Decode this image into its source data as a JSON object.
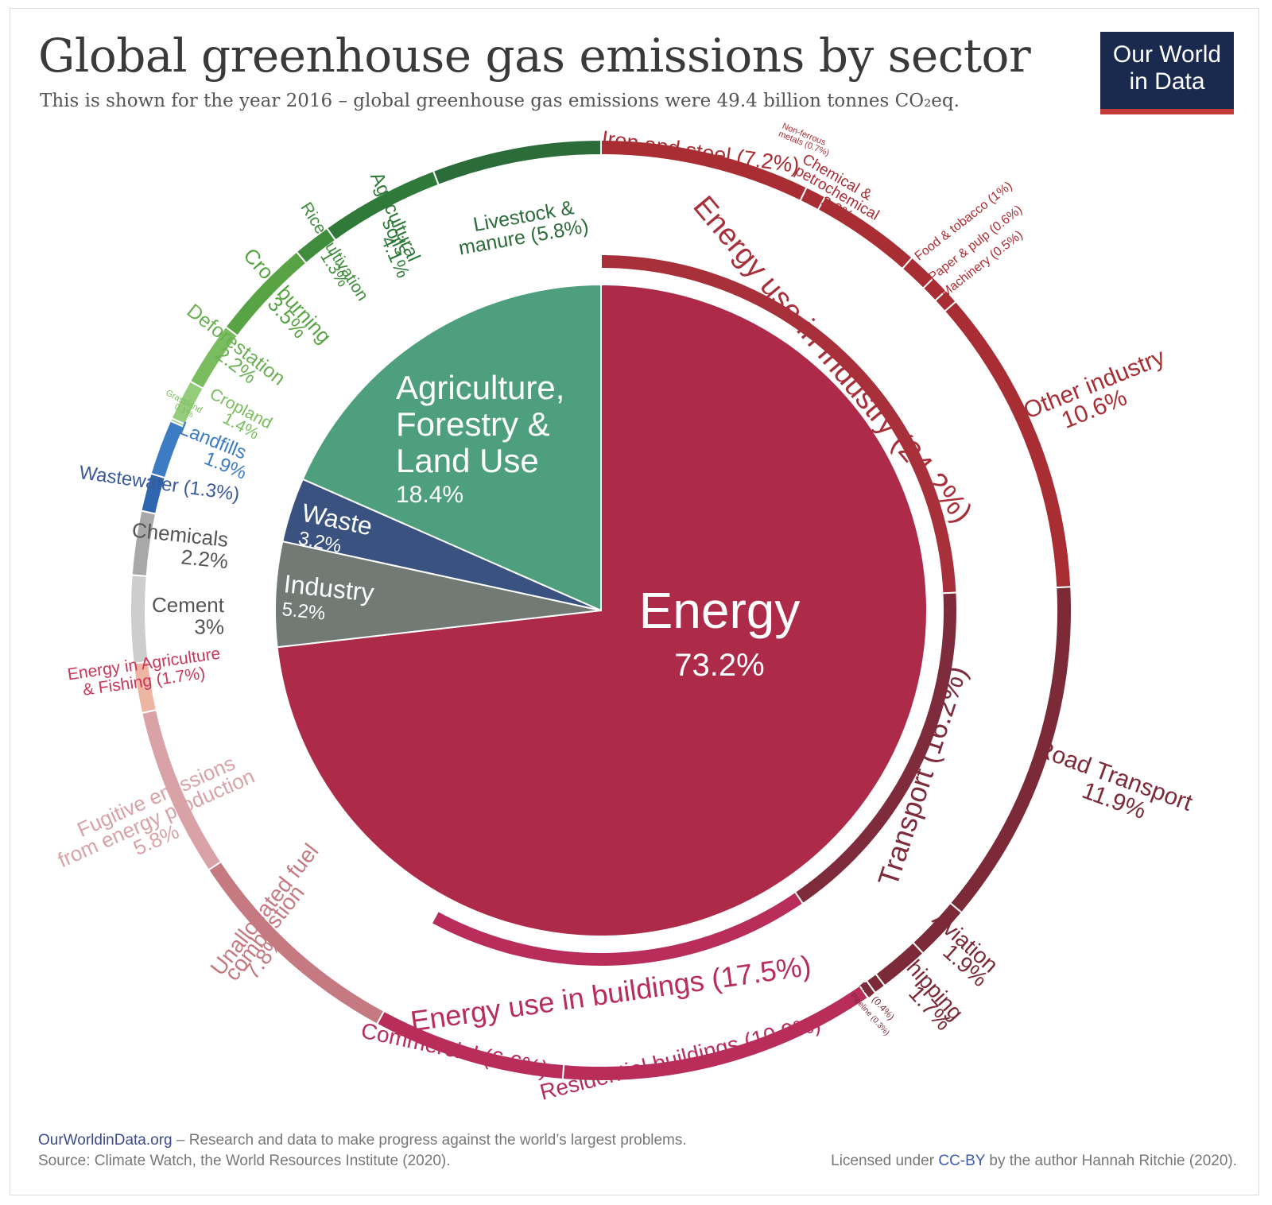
{
  "header": {
    "title": "Global greenhouse gas emissions by sector",
    "subtitle": "This is shown for the year 2016 – global greenhouse gas emissions were 49.4 billion tonnes CO₂eq.",
    "logo_line1": "Our World",
    "logo_line2": "in Data",
    "logo_bg": "#1a2a4f",
    "logo_accent": "#c43a3a"
  },
  "chart_data": {
    "type": "pie",
    "title": "Global greenhouse gas emissions by sector",
    "unit": "% of global GHG emissions (2016)",
    "main": [
      {
        "id": "energy",
        "label": "Energy",
        "value": 73.2,
        "value_label": "73.2%",
        "color": "#ad2b48"
      },
      {
        "id": "industry",
        "label": "Industry",
        "value": 5.2,
        "value_label": "5.2%",
        "color": "#717a74"
      },
      {
        "id": "waste",
        "label": "Waste",
        "value": 3.2,
        "value_label": "3.2%",
        "color": "#3a5280"
      },
      {
        "id": "afolu",
        "label": "Agriculture,\nForestry &\nLand Use",
        "value": 18.4,
        "value_label": "18.4%",
        "color": "#4e9f7d"
      }
    ],
    "energy_groups": [
      {
        "label": "Energy use in Industry (24.2%)",
        "value": 24.2,
        "color": "#a8303a"
      },
      {
        "label": "Transport (16.2%)",
        "value": 16.2,
        "color": "#7e2c3c"
      },
      {
        "label": "Energy use in buildings (17.5%)",
        "value": 17.5,
        "color": "#b82d5a"
      }
    ],
    "outer": [
      {
        "label": "Iron and steel (7.2%)",
        "value": 7.2,
        "color": "#a82e34"
      },
      {
        "label": "Non-ferrous metals (0.7%)",
        "value": 0.7,
        "color": "#a82e34"
      },
      {
        "label": "Chemical & petrochemical 3.6%",
        "value": 3.6,
        "color": "#a82e34"
      },
      {
        "label": "Food & tobacco (1%)",
        "value": 1.0,
        "color": "#a82e34"
      },
      {
        "label": "Paper & pulp (0.6%)",
        "value": 0.6,
        "color": "#a82e34"
      },
      {
        "label": "Machinery (0.5%)",
        "value": 0.5,
        "color": "#a82e34"
      },
      {
        "label": "Other industry 10.6%",
        "value": 10.6,
        "color": "#a82e34"
      },
      {
        "label": "Road Transport 11.9%",
        "value": 11.9,
        "color": "#7c2a38"
      },
      {
        "label": "Aviation 1.9%",
        "value": 1.9,
        "color": "#7c2a38"
      },
      {
        "label": "Shipping 1.7%",
        "value": 1.7,
        "color": "#7c2a38"
      },
      {
        "label": "Rail (0.4%)",
        "value": 0.4,
        "color": "#7c2a38"
      },
      {
        "label": "Pipeline (0.3%)",
        "value": 0.3,
        "color": "#7c2a38"
      },
      {
        "label": "Residential buildings (10.9%)",
        "value": 10.9,
        "color": "#b82d5a"
      },
      {
        "label": "Commercial (6.6%)",
        "value": 6.6,
        "color": "#b82d5a"
      },
      {
        "label": "Unallocated fuel combustion 7.8%",
        "value": 7.8,
        "color": "#c47a80"
      },
      {
        "label": "Fugitive emissions from energy production 5.8%",
        "value": 5.8,
        "color": "#d8a2a6"
      },
      {
        "label": "Energy in Agriculture & Fishing (1.7%)",
        "value": 1.7,
        "color": "#eeb5a3"
      },
      {
        "label": "Cement 3%",
        "value": 3.0,
        "color": "#cdcdcd"
      },
      {
        "label": "Chemicals 2.2%",
        "value": 2.2,
        "color": "#a8a8a8"
      },
      {
        "label": "Wastewater (1.3%)",
        "value": 1.3,
        "color": "#2e66b0"
      },
      {
        "label": "Landfills 1.9%",
        "value": 1.9,
        "color": "#3c7cc4"
      },
      {
        "label": "Grassland 0.1%",
        "value": 0.1,
        "color": "#a2d28a"
      },
      {
        "label": "Cropland 1.4%",
        "value": 1.4,
        "color": "#96cd7c"
      },
      {
        "label": "Deforestation 2.2%",
        "value": 2.2,
        "color": "#7abd5e"
      },
      {
        "label": "Crop burning 3.5%",
        "value": 3.5,
        "color": "#58a444"
      },
      {
        "label": "Rice cultivation 1.3%",
        "value": 1.3,
        "color": "#3f8c3c"
      },
      {
        "label": "Agricultural soils 4.1%",
        "value": 4.1,
        "color": "#2f7a38"
      },
      {
        "label": "Livestock & manure (5.8%)",
        "value": 5.8,
        "color": "#2c6b3a"
      }
    ]
  },
  "footer": {
    "site": "OurWorldinData.org",
    "tagline": " – Research and data to make progress against the world’s largest problems.",
    "source": "Source: Climate Watch, the World Resources Institute (2020).",
    "license_prefix": "Licensed under ",
    "license_link": "CC-BY",
    "license_suffix": " by the author Hannah Ritchie  (2020)."
  }
}
